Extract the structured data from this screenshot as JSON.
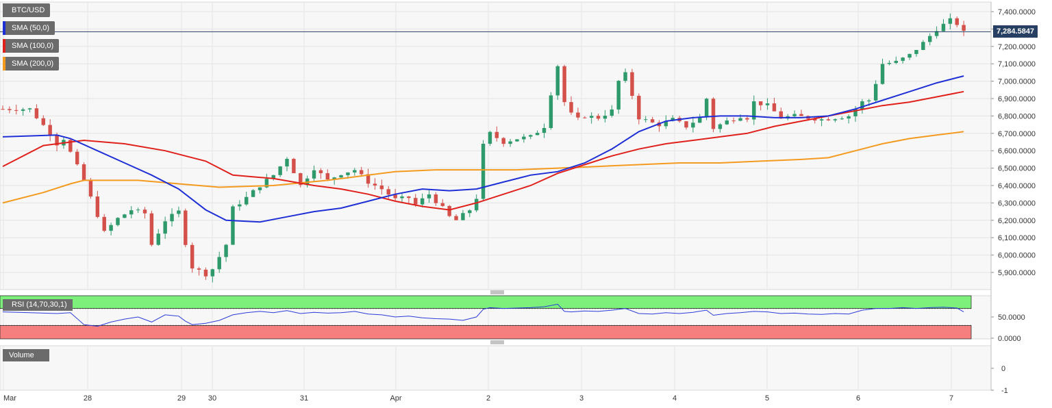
{
  "symbol": "BTC/USD",
  "indicators": [
    {
      "label": "SMA (50,0)",
      "color": "#1f2fd6"
    },
    {
      "label": "SMA (100,0)",
      "color": "#e0201b"
    },
    {
      "label": "SMA (200,0)",
      "color": "#f39a1f"
    }
  ],
  "current_price_label": "7,284.5847",
  "rsi_label": "RSI (14,70,30,1)",
  "volume_label": "Volume",
  "colors": {
    "up": "#2e9a6b",
    "down": "#d4504a",
    "rsi_line": "#2b3bd9",
    "overbought": "#7cf07a",
    "oversold": "#f57f7f",
    "price_line": "#263f63"
  },
  "chart_data": [
    {
      "type": "candlestick",
      "title": "BTC/USD",
      "y_tick_labels": [
        "7,400.0000",
        "7,300.0000",
        "7,200.0000",
        "7,100.0000",
        "7,000.0000",
        "6,900.0000",
        "6,800.0000",
        "6,700.0000",
        "6,600.0000",
        "6,500.0000",
        "6,400.0000",
        "6,300.0000",
        "6,200.0000",
        "6,100.0000",
        "6,000.0000",
        "5,900.0000"
      ],
      "ylim": [
        5860,
        7460
      ],
      "x_tick_labels": [
        "Mar",
        "28",
        "29",
        "30",
        "31",
        "Apr",
        "2",
        "3",
        "4",
        "5",
        "6",
        "7"
      ],
      "close_path": [
        [
          0,
          6840
        ],
        [
          4,
          6840
        ],
        [
          7,
          6700
        ],
        [
          8,
          6640
        ],
        [
          9,
          6670
        ],
        [
          12,
          6430
        ],
        [
          14,
          6230
        ],
        [
          15,
          6130
        ],
        [
          17,
          6210
        ],
        [
          19,
          6260
        ],
        [
          21,
          6240
        ],
        [
          22,
          6060
        ],
        [
          24,
          6200
        ],
        [
          26,
          6250
        ],
        [
          27,
          6070
        ],
        [
          28,
          5930
        ],
        [
          30,
          5890
        ],
        [
          31,
          5920
        ],
        [
          33,
          6060
        ],
        [
          34,
          6270
        ],
        [
          36,
          6330
        ],
        [
          38,
          6400
        ],
        [
          40,
          6460
        ],
        [
          42,
          6560
        ],
        [
          44,
          6400
        ],
        [
          46,
          6500
        ],
        [
          48,
          6430
        ],
        [
          50,
          6470
        ],
        [
          52,
          6490
        ],
        [
          54,
          6420
        ],
        [
          56,
          6380
        ],
        [
          58,
          6320
        ],
        [
          60,
          6330
        ],
        [
          61,
          6290
        ],
        [
          63,
          6350
        ],
        [
          65,
          6270
        ],
        [
          66,
          6220
        ],
        [
          67,
          6200
        ],
        [
          69,
          6260
        ],
        [
          70,
          6330
        ],
        [
          71,
          6630
        ],
        [
          72,
          6700
        ],
        [
          74,
          6650
        ],
        [
          76,
          6670
        ],
        [
          78,
          6680
        ],
        [
          80,
          6740
        ],
        [
          81,
          6930
        ],
        [
          82,
          7090
        ],
        [
          83,
          6880
        ],
        [
          84,
          6810
        ],
        [
          85,
          6780
        ],
        [
          86,
          6800
        ],
        [
          88,
          6790
        ],
        [
          90,
          6830
        ],
        [
          91,
          7000
        ],
        [
          92,
          7040
        ],
        [
          93,
          6920
        ],
        [
          94,
          6790
        ],
        [
          96,
          6760
        ],
        [
          97,
          6750
        ],
        [
          99,
          6780
        ],
        [
          101,
          6740
        ],
        [
          103,
          6790
        ],
        [
          104,
          6900
        ],
        [
          105,
          6730
        ],
        [
          107,
          6770
        ],
        [
          109,
          6800
        ],
        [
          110,
          6790
        ],
        [
          111,
          6880
        ],
        [
          113,
          6860
        ],
        [
          115,
          6790
        ],
        [
          117,
          6800
        ],
        [
          119,
          6790
        ],
        [
          121,
          6780
        ],
        [
          123,
          6790
        ],
        [
          125,
          6800
        ],
        [
          127,
          6880
        ],
        [
          128,
          6890
        ],
        [
          129,
          6990
        ],
        [
          130,
          7100
        ],
        [
          132,
          7110
        ],
        [
          134,
          7150
        ],
        [
          136,
          7220
        ],
        [
          138,
          7300
        ],
        [
          140,
          7350
        ],
        [
          141,
          7330
        ],
        [
          142,
          7280
        ]
      ],
      "series": [
        {
          "name": "SMA (50,0)",
          "values": [
            [
              0,
              6680
            ],
            [
              8,
              6690
            ],
            [
              10,
              6670
            ],
            [
              14,
              6600
            ],
            [
              18,
              6530
            ],
            [
              22,
              6460
            ],
            [
              26,
              6380
            ],
            [
              30,
              6260
            ],
            [
              33,
              6200
            ],
            [
              38,
              6190
            ],
            [
              42,
              6220
            ],
            [
              46,
              6250
            ],
            [
              50,
              6270
            ],
            [
              54,
              6310
            ],
            [
              58,
              6350
            ],
            [
              62,
              6380
            ],
            [
              66,
              6370
            ],
            [
              70,
              6380
            ],
            [
              74,
              6420
            ],
            [
              78,
              6460
            ],
            [
              82,
              6480
            ],
            [
              86,
              6530
            ],
            [
              90,
              6610
            ],
            [
              94,
              6710
            ],
            [
              98,
              6770
            ],
            [
              102,
              6790
            ],
            [
              106,
              6800
            ],
            [
              110,
              6800
            ],
            [
              114,
              6790
            ],
            [
              118,
              6790
            ],
            [
              122,
              6800
            ],
            [
              126,
              6840
            ],
            [
              130,
              6890
            ],
            [
              134,
              6940
            ],
            [
              138,
              6990
            ],
            [
              142,
              7030
            ]
          ]
        },
        {
          "name": "SMA (100,0)",
          "values": [
            [
              0,
              6510
            ],
            [
              6,
              6630
            ],
            [
              12,
              6660
            ],
            [
              18,
              6640
            ],
            [
              24,
              6600
            ],
            [
              30,
              6540
            ],
            [
              34,
              6460
            ],
            [
              40,
              6440
            ],
            [
              46,
              6400
            ],
            [
              50,
              6380
            ],
            [
              54,
              6350
            ],
            [
              58,
              6310
            ],
            [
              62,
              6280
            ],
            [
              66,
              6260
            ],
            [
              70,
              6300
            ],
            [
              74,
              6350
            ],
            [
              78,
              6400
            ],
            [
              82,
              6470
            ],
            [
              86,
              6520
            ],
            [
              90,
              6570
            ],
            [
              94,
              6610
            ],
            [
              98,
              6640
            ],
            [
              102,
              6660
            ],
            [
              106,
              6680
            ],
            [
              110,
              6700
            ],
            [
              114,
              6740
            ],
            [
              118,
              6770
            ],
            [
              122,
              6800
            ],
            [
              126,
              6830
            ],
            [
              130,
              6860
            ],
            [
              134,
              6880
            ],
            [
              138,
              6910
            ],
            [
              142,
              6940
            ]
          ]
        },
        {
          "name": "SMA (200,0)",
          "values": [
            [
              0,
              6300
            ],
            [
              6,
              6360
            ],
            [
              10,
              6410
            ],
            [
              12,
              6430
            ],
            [
              20,
              6430
            ],
            [
              26,
              6410
            ],
            [
              32,
              6390
            ],
            [
              40,
              6400
            ],
            [
              48,
              6430
            ],
            [
              54,
              6460
            ],
            [
              58,
              6480
            ],
            [
              64,
              6490
            ],
            [
              70,
              6490
            ],
            [
              76,
              6490
            ],
            [
              82,
              6500
            ],
            [
              88,
              6510
            ],
            [
              94,
              6520
            ],
            [
              100,
              6530
            ],
            [
              106,
              6530
            ],
            [
              112,
              6540
            ],
            [
              118,
              6550
            ],
            [
              122,
              6560
            ],
            [
              126,
              6600
            ],
            [
              130,
              6640
            ],
            [
              134,
              6670
            ],
            [
              138,
              6690
            ],
            [
              142,
              6710
            ]
          ]
        }
      ],
      "current_price": 7284.5847
    },
    {
      "type": "line",
      "title": "RSI (14,70,30,1)",
      "y_tick_labels": [
        "50.0000",
        "0.0000"
      ],
      "ylim": [
        -10,
        100
      ],
      "bands": {
        "overbought": 70,
        "oversold": 30
      },
      "values": [
        [
          0,
          62
        ],
        [
          4,
          60
        ],
        [
          8,
          58
        ],
        [
          10,
          60
        ],
        [
          12,
          32
        ],
        [
          14,
          28
        ],
        [
          16,
          38
        ],
        [
          18,
          45
        ],
        [
          20,
          50
        ],
        [
          22,
          38
        ],
        [
          24,
          55
        ],
        [
          26,
          52
        ],
        [
          27,
          40
        ],
        [
          28,
          32
        ],
        [
          30,
          35
        ],
        [
          32,
          42
        ],
        [
          34,
          55
        ],
        [
          36,
          60
        ],
        [
          38,
          63
        ],
        [
          40,
          60
        ],
        [
          42,
          65
        ],
        [
          44,
          58
        ],
        [
          46,
          61
        ],
        [
          48,
          59
        ],
        [
          50,
          60
        ],
        [
          52,
          63
        ],
        [
          54,
          57
        ],
        [
          56,
          55
        ],
        [
          58,
          50
        ],
        [
          60,
          52
        ],
        [
          62,
          48
        ],
        [
          64,
          46
        ],
        [
          66,
          45
        ],
        [
          68,
          42
        ],
        [
          70,
          50
        ],
        [
          71,
          68
        ],
        [
          72,
          72
        ],
        [
          74,
          70
        ],
        [
          76,
          71
        ],
        [
          78,
          72
        ],
        [
          80,
          74
        ],
        [
          82,
          80
        ],
        [
          83,
          63
        ],
        [
          84,
          62
        ],
        [
          86,
          64
        ],
        [
          88,
          63
        ],
        [
          90,
          66
        ],
        [
          92,
          70
        ],
        [
          94,
          58
        ],
        [
          96,
          57
        ],
        [
          98,
          60
        ],
        [
          100,
          58
        ],
        [
          102,
          61
        ],
        [
          104,
          66
        ],
        [
          105,
          54
        ],
        [
          107,
          58
        ],
        [
          109,
          60
        ],
        [
          111,
          63
        ],
        [
          113,
          62
        ],
        [
          115,
          58
        ],
        [
          117,
          59
        ],
        [
          119,
          57
        ],
        [
          121,
          56
        ],
        [
          123,
          58
        ],
        [
          125,
          57
        ],
        [
          127,
          66
        ],
        [
          129,
          70
        ],
        [
          131,
          70
        ],
        [
          133,
          72
        ],
        [
          135,
          70
        ],
        [
          137,
          72
        ],
        [
          139,
          73
        ],
        [
          141,
          71
        ],
        [
          142,
          62
        ]
      ]
    },
    {
      "type": "bar",
      "title": "Volume",
      "y_tick_labels": [
        "0",
        "-1"
      ],
      "values": []
    }
  ]
}
